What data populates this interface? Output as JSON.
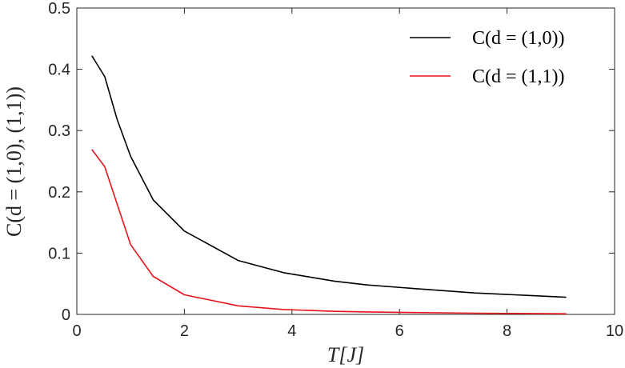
{
  "chart_data": {
    "type": "line",
    "xlabel": "T[J]",
    "ylabel": "C(d = (1,0), (1,1))",
    "xlim": [
      0,
      10
    ],
    "ylim": [
      0,
      0.5
    ],
    "xticks": [
      "0",
      "2",
      "4",
      "6",
      "8",
      "10"
    ],
    "yticks": [
      "0",
      "0.1",
      "0.2",
      "0.3",
      "0.4",
      "0.5"
    ],
    "grid": false,
    "legend_position": "top-right",
    "series": [
      {
        "name": "C(d = (1,0))",
        "color": "#000000",
        "x": [
          0.28,
          0.52,
          0.75,
          1.0,
          1.42,
          2.0,
          3.0,
          3.85,
          4.8,
          5.4,
          6.3,
          7.4,
          8.4,
          9.1
        ],
        "y": [
          0.422,
          0.388,
          0.318,
          0.258,
          0.187,
          0.136,
          0.088,
          0.068,
          0.054,
          0.048,
          0.042,
          0.035,
          0.031,
          0.028
        ]
      },
      {
        "name": "C(d = (1,1))",
        "color": "#e8141c",
        "x": [
          0.28,
          0.52,
          0.75,
          1.0,
          1.42,
          2.0,
          3.0,
          3.85,
          4.8,
          5.4,
          6.3,
          7.4,
          8.4,
          9.1
        ],
        "y": [
          0.269,
          0.241,
          0.18,
          0.114,
          0.062,
          0.032,
          0.014,
          0.008,
          0.005,
          0.004,
          0.003,
          0.002,
          0.0015,
          0.001
        ]
      }
    ]
  }
}
